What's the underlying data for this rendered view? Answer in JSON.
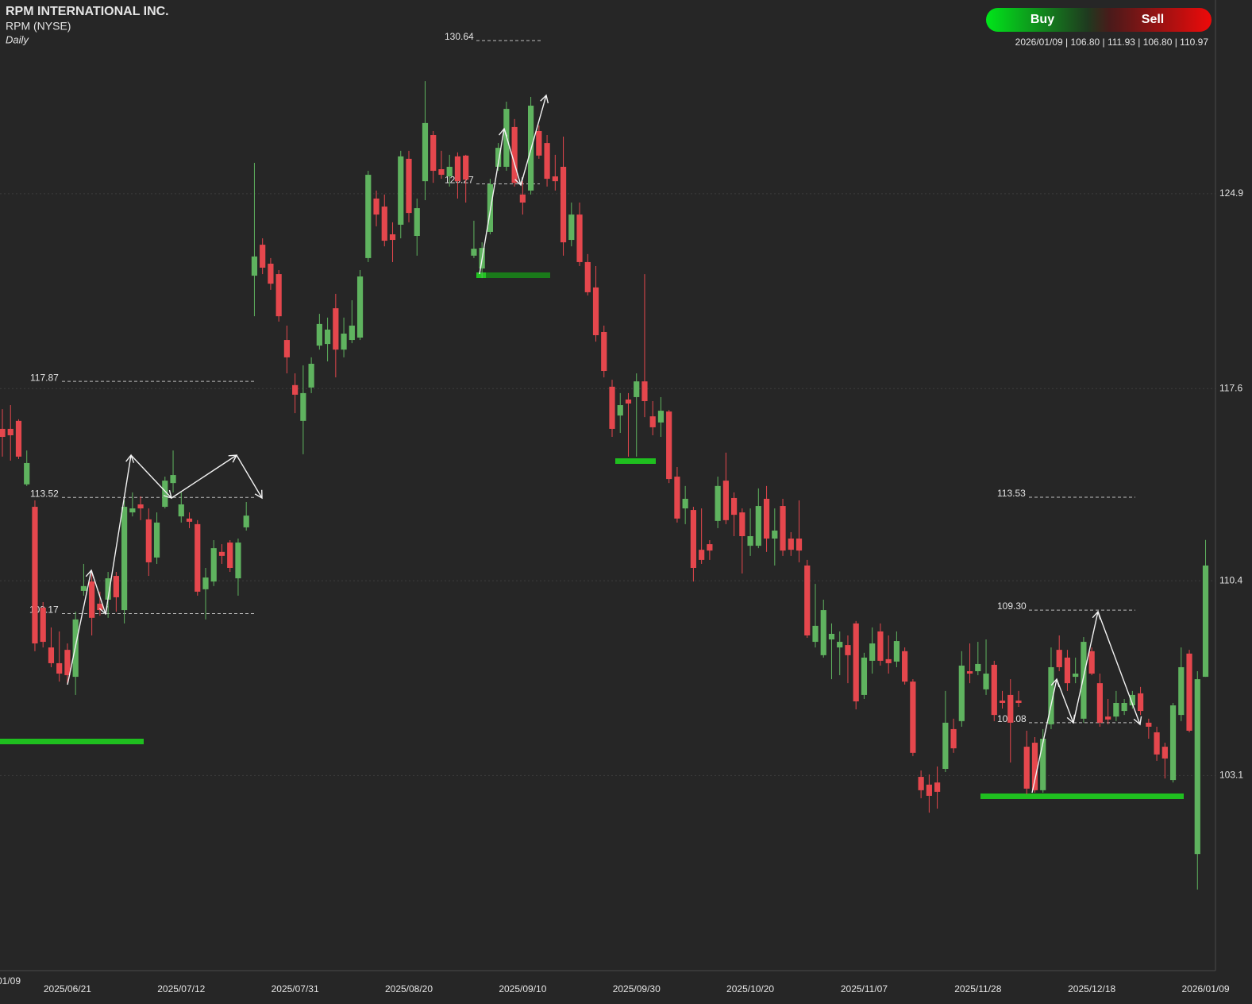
{
  "chart_data": {
    "type": "candlestick",
    "title": "RPM INTERNATIONAL INC.",
    "subtitle": "RPM (NYSE)",
    "interval": "Daily",
    "info": "2026/01/09 | 106.80 | 111.93 | 106.80 | 110.97",
    "buttons": [
      "Buy",
      "Sell"
    ],
    "up_color": "#5fb35f",
    "down_color": "#e5474d",
    "grid": true,
    "ylim": [
      95.79,
      132.16
    ],
    "yticks": [
      124.9,
      117.6,
      110.4,
      103.1
    ],
    "levels": [
      130.64,
      125.27,
      117.87,
      113.52,
      109.17,
      113.53,
      {
        "value": 109.3,
        "label": "109.30"
      },
      105.08
    ],
    "categories": [
      "01/09",
      null,
      null,
      null,
      null,
      null,
      null,
      null,
      "2025/06/21",
      null,
      null,
      null,
      null,
      null,
      null,
      null,
      null,
      null,
      null,
      null,
      null,
      null,
      "2025/07/12",
      null,
      null,
      null,
      null,
      null,
      null,
      null,
      null,
      null,
      null,
      null,
      null,
      null,
      "2025/07/31",
      null,
      null,
      null,
      null,
      null,
      null,
      null,
      null,
      null,
      null,
      null,
      null,
      null,
      "2025/08/20",
      null,
      null,
      null,
      null,
      null,
      null,
      null,
      null,
      null,
      null,
      null,
      null,
      null,
      "2025/09/10",
      null,
      null,
      null,
      null,
      null,
      null,
      null,
      null,
      null,
      null,
      null,
      null,
      null,
      "2025/09/30",
      null,
      null,
      null,
      null,
      null,
      null,
      null,
      null,
      null,
      null,
      null,
      null,
      null,
      "2025/10/20",
      null,
      null,
      null,
      null,
      null,
      null,
      null,
      null,
      null,
      null,
      null,
      null,
      null,
      "2025/11/07",
      null,
      null,
      null,
      null,
      null,
      null,
      null,
      null,
      null,
      null,
      null,
      null,
      null,
      "2025/11/28",
      null,
      null,
      null,
      null,
      null,
      null,
      null,
      null,
      null,
      null,
      null,
      null,
      null,
      "2025/12/18",
      null,
      null,
      null,
      null,
      null,
      null,
      null,
      null,
      null,
      null,
      null,
      null,
      null,
      "2026/01/09"
    ],
    "open": [
      116.09,
      116.09,
      116.39,
      114.01,
      113.17,
      109.39,
      107.9,
      107.31,
      107.81,
      106.8,
      110.02,
      110.37,
      109.54,
      109.69,
      110.58,
      109.3,
      112.96,
      113.26,
      112.7,
      111.27,
      113.17,
      114.06,
      112.81,
      112.73,
      112.52,
      110.08,
      110.37,
      111.48,
      111.83,
      110.49,
      112.4,
      121.83,
      122.99,
      122.28,
      121.89,
      119.42,
      117.73,
      116.39,
      117.64,
      119.21,
      119.27,
      120.61,
      119.06,
      119.42,
      119.51,
      122.49,
      124.72,
      124.42,
      123.38,
      123.74,
      126.21,
      123.32,
      125.37,
      127.1,
      125.82,
      125.55,
      126.3,
      126.33,
      122.58,
      122.1,
      123.47,
      125.91,
      125.91,
      127.4,
      124.87,
      125.02,
      127.25,
      126.8,
      125.55,
      125.91,
      123.17,
      124.12,
      122.34,
      121.39,
      119.72,
      117.67,
      116.59,
      117.19,
      117.28,
      117.87,
      116.56,
      116.33,
      116.74,
      114.3,
      113.11,
      113.05,
      111.56,
      111.77,
      112.64,
      114.15,
      113.5,
      112.96,
      111.71,
      111.71,
      113.47,
      111.98,
      113.2,
      111.98,
      111.98,
      110.97,
      108.11,
      107.61,
      108.2,
      107.9,
      107.99,
      108.8,
      106.12,
      107.4,
      108.5,
      107.46,
      107.37,
      107.76,
      106.62,
      103.05,
      102.76,
      102.84,
      103.35,
      104.84,
      105.14,
      107.01,
      107.01,
      106.33,
      107.25,
      105.91,
      106.12,
      105.91,
      104.18,
      104.33,
      102.55,
      105.02,
      107.81,
      107.52,
      106.8,
      105.23,
      107.76,
      106.56,
      105.31,
      105.31,
      105.52,
      105.73,
      106.18,
      105.08,
      104.72,
      104.18,
      102.93,
      105.37,
      107.67,
      100.16,
      106.8
    ],
    "high": [
      116.83,
      116.98,
      116.45,
      115.28,
      113.41,
      109.6,
      108.65,
      108.5,
      108.05,
      109.24,
      111.03,
      110.79,
      109.99,
      110.73,
      110.73,
      113.41,
      113.71,
      113.56,
      113.11,
      112.96,
      114.3,
      115.28,
      113.71,
      112.96,
      112.67,
      110.88,
      111.92,
      111.77,
      111.92,
      111.98,
      113.35,
      126.06,
      123.23,
      122.49,
      122.04,
      119.96,
      118.17,
      118.47,
      118.77,
      120.4,
      120.26,
      121.15,
      120.26,
      120.91,
      122.04,
      125.76,
      125.02,
      124.87,
      123.83,
      126.51,
      126.51,
      124.72,
      129.12,
      127.25,
      126.51,
      126.36,
      126.45,
      126.36,
      123.89,
      123.08,
      125.46,
      126.8,
      128.35,
      127.7,
      125.37,
      128.53,
      127.46,
      127.1,
      126.36,
      127.04,
      124.57,
      124.57,
      122.64,
      122.19,
      119.96,
      117.93,
      117.43,
      117.43,
      118.17,
      121.89,
      117.13,
      117.28,
      116.8,
      114.66,
      113.95,
      113.17,
      113.11,
      111.92,
      114.3,
      115.2,
      113.71,
      113.11,
      113.11,
      113.86,
      113.95,
      113.11,
      113.47,
      112.22,
      113.41,
      111.18,
      110.28,
      109.69,
      108.8,
      108.5,
      108.35,
      108.89,
      107.7,
      108.65,
      108.8,
      108.35,
      108.5,
      107.9,
      106.71,
      103.29,
      103.14,
      103.44,
      106.27,
      105.23,
      107.76,
      108.05,
      108.11,
      108.2,
      107.4,
      106.27,
      106.71,
      106.27,
      104.78,
      104.54,
      104.84,
      107.9,
      108.35,
      107.81,
      107.52,
      108.29,
      107.9,
      106.92,
      105.97,
      106.27,
      105.97,
      106.27,
      106.42,
      105.23,
      104.93,
      104.33,
      105.82,
      107.9,
      107.81,
      107.01,
      111.93
    ],
    "low": [
      115.05,
      114.9,
      114.96,
      113.95,
      107.76,
      107.9,
      107.16,
      106.62,
      106.56,
      106.12,
      109.84,
      108.35,
      109.09,
      109.01,
      109.24,
      108.8,
      112.81,
      112.67,
      110.58,
      111.03,
      113.11,
      113.71,
      112.58,
      112.37,
      109.84,
      108.95,
      110.2,
      111.03,
      110.73,
      109.84,
      112.28,
      120.31,
      121.89,
      121.3,
      120.11,
      118.17,
      116.68,
      115.14,
      117.43,
      119.06,
      118.62,
      118.02,
      118.77,
      119.3,
      119.42,
      122.34,
      123.68,
      122.93,
      122.34,
      123.23,
      123.83,
      122.58,
      124.66,
      125.31,
      125.46,
      125.17,
      124.72,
      124.57,
      122.49,
      121.74,
      123.38,
      125.76,
      125.76,
      125.17,
      124.12,
      124.87,
      126.21,
      125.17,
      125.02,
      122.58,
      122.93,
      122.19,
      121.09,
      119.36,
      118.02,
      115.79,
      115.94,
      115.05,
      115.05,
      116.53,
      115.85,
      115.79,
      114.06,
      112.58,
      112.52,
      110.37,
      111.03,
      111.18,
      112.37,
      112.52,
      112.07,
      110.67,
      111.33,
      111.62,
      111.48,
      110.97,
      111.33,
      111.33,
      111.09,
      108.26,
      107.9,
      107.52,
      106.71,
      106.86,
      106.56,
      105.58,
      105.97,
      106.92,
      107.22,
      106.92,
      107.16,
      106.51,
      103.83,
      102.25,
      101.71,
      101.86,
      103.23,
      103.95,
      104.93,
      106.56,
      106.86,
      106.12,
      105.14,
      105.61,
      103.59,
      105.67,
      102.4,
      102.46,
      102.46,
      104.84,
      107.01,
      106.27,
      106.56,
      105.08,
      106.86,
      104.93,
      105.02,
      105.14,
      105.37,
      105.61,
      105.37,
      104.48,
      103.65,
      102.99,
      102.84,
      105.14,
      104.72,
      98.83,
      106.8
    ],
    "close": [
      115.79,
      115.85,
      115.05,
      114.81,
      108.05,
      108.11,
      107.31,
      106.92,
      106.86,
      108.95,
      110.2,
      109.01,
      109.3,
      110.49,
      109.78,
      113.17,
      113.11,
      113.11,
      111.09,
      112.58,
      114.15,
      114.36,
      113.26,
      112.61,
      109.99,
      110.52,
      111.62,
      111.33,
      110.88,
      111.83,
      112.84,
      122.55,
      122.13,
      121.53,
      120.31,
      118.77,
      117.37,
      117.43,
      118.53,
      120.02,
      119.81,
      119.06,
      119.66,
      119.96,
      121.8,
      125.61,
      124.12,
      123.14,
      123.17,
      126.3,
      124.18,
      124.36,
      127.55,
      125.76,
      125.61,
      125.91,
      125.37,
      125.43,
      122.84,
      122.87,
      125.26,
      126.62,
      128.08,
      125.31,
      124.57,
      128.2,
      126.33,
      125.46,
      125.37,
      123.08,
      124.12,
      122.34,
      121.21,
      119.6,
      118.26,
      116.09,
      116.98,
      117.04,
      117.87,
      117.13,
      116.15,
      116.77,
      114.21,
      112.73,
      113.47,
      110.88,
      111.18,
      111.53,
      113.95,
      112.67,
      112.87,
      112.07,
      112.07,
      113.2,
      111.98,
      112.28,
      111.53,
      111.56,
      111.53,
      108.35,
      108.71,
      109.3,
      108.41,
      108.11,
      107.61,
      105.88,
      107.52,
      108.05,
      107.4,
      107.31,
      108.14,
      106.62,
      103.95,
      102.55,
      102.34,
      102.49,
      105.08,
      104.12,
      107.22,
      106.92,
      107.28,
      106.92,
      105.37,
      105.82,
      105.08,
      105.82,
      102.61,
      102.55,
      104.48,
      107.16,
      107.16,
      106.56,
      106.92,
      108.11,
      106.92,
      105.08,
      105.2,
      105.82,
      105.82,
      106.12,
      105.52,
      104.93,
      103.89,
      103.74,
      105.73,
      107.16,
      104.78,
      106.71,
      110.97
    ]
  }
}
